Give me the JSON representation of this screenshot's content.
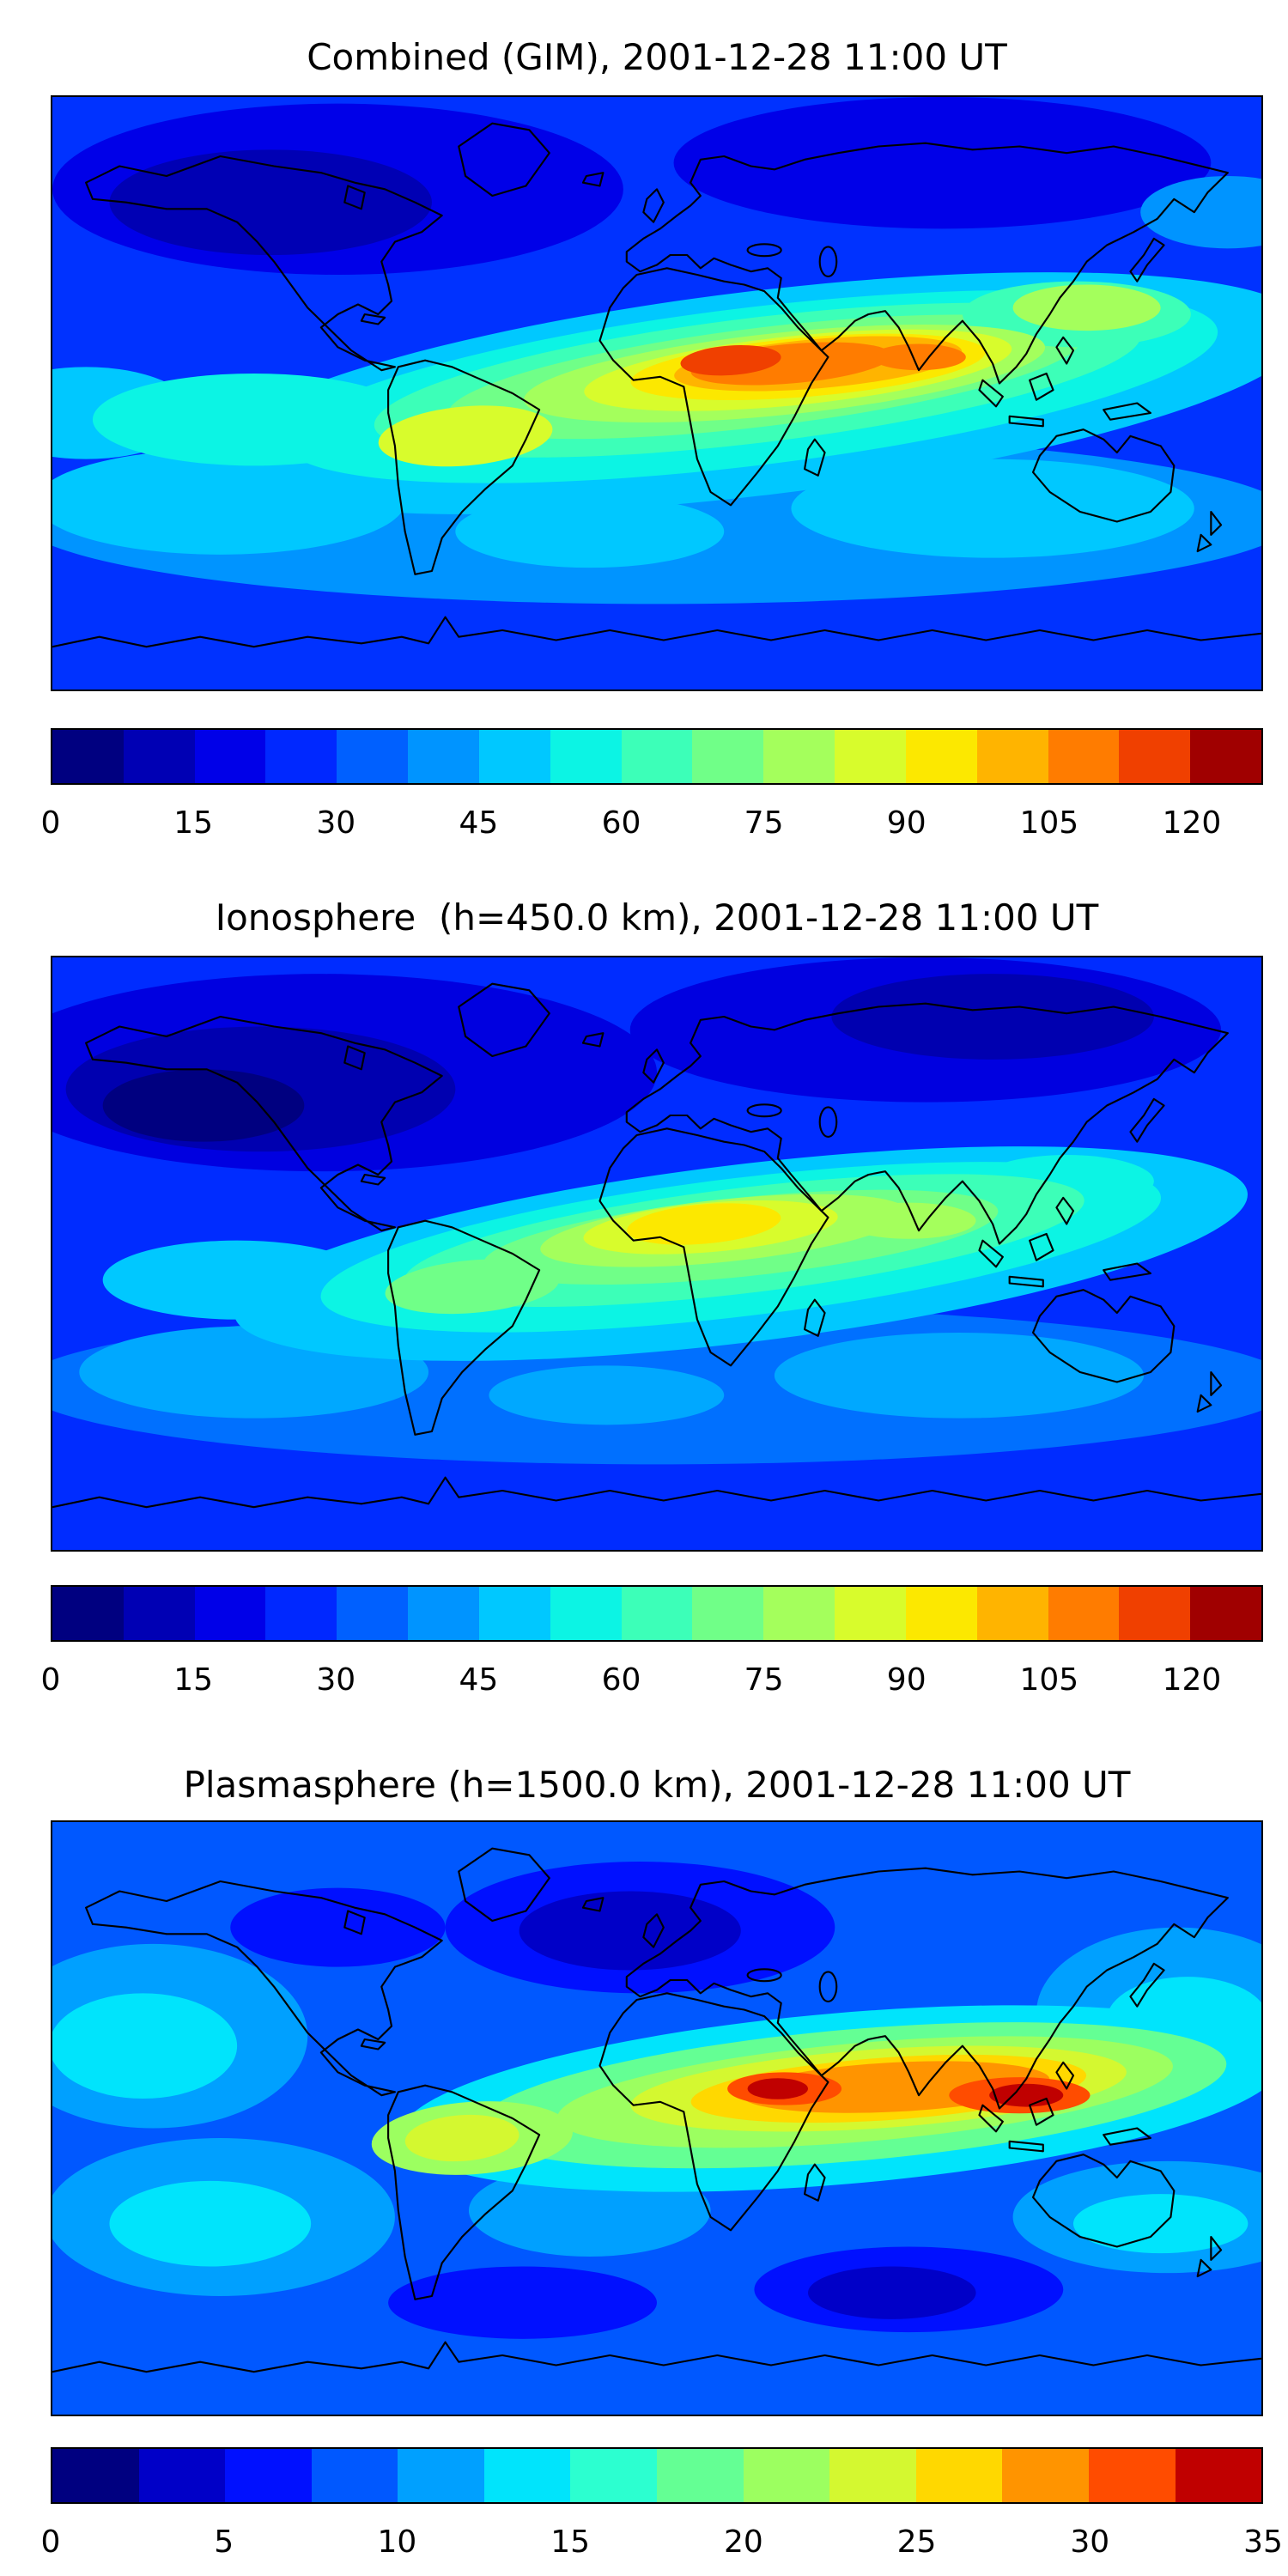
{
  "figure": {
    "background": "#ffffff",
    "coastline_color": "#000000",
    "panel_count": 3
  },
  "chart_data": [
    {
      "type": "heatmap",
      "subtype": "filled-contour-world-map",
      "title": "Combined (GIM), 2001-12-28 11:00 UT",
      "projection": "equirectangular",
      "lon_range": [
        -180,
        180
      ],
      "lat_range": [
        -90,
        90
      ],
      "colorbar": {
        "vmin": 0,
        "vmax": 127.5,
        "ticks": [
          0,
          15,
          30,
          45,
          60,
          75,
          90,
          105,
          120
        ],
        "colors": [
          "#000080",
          "#0000b4",
          "#0000e8",
          "#0028ff",
          "#0060ff",
          "#0094ff",
          "#00c8ff",
          "#0cf4e4",
          "#3cffb8",
          "#70ff88",
          "#a4ff5c",
          "#d8fc2c",
          "#fce800",
          "#ffb400",
          "#ff7c00",
          "#f04000",
          "#a00000"
        ]
      },
      "field": {
        "base_color": "#0032ff",
        "base_value": 20,
        "max_feature": {
          "name": "equatorial-anomaly-core",
          "lon": 22,
          "lat": 10,
          "value": 122
        },
        "blobs": [
          {
            "lon": -95,
            "lat": 62,
            "rx": 85,
            "ry": 26,
            "color": "#0000e8",
            "value": 8
          },
          {
            "lon": -115,
            "lat": 58,
            "rx": 48,
            "ry": 16,
            "color": "#0000b4",
            "value": 5
          },
          {
            "lon": 85,
            "lat": 70,
            "rx": 80,
            "ry": 20,
            "color": "#0000e8",
            "value": 8
          },
          {
            "lon": 0,
            "lat": -38,
            "rx": 190,
            "ry": 26,
            "color": "#0094ff",
            "value": 35
          },
          {
            "lon": -130,
            "lat": -33,
            "rx": 55,
            "ry": 16,
            "color": "#00c8ff",
            "value": 45
          },
          {
            "lon": 100,
            "lat": -35,
            "rx": 60,
            "ry": 15,
            "color": "#00c8ff",
            "value": 45
          },
          {
            "lon": -20,
            "lat": -42,
            "rx": 40,
            "ry": 11,
            "color": "#00c8ff",
            "value": 45
          },
          {
            "lon": 170,
            "lat": 55,
            "rx": 26,
            "ry": 11,
            "color": "#0094ff",
            "value": 35
          },
          {
            "lon": 30,
            "lat": 0,
            "rx": 165,
            "ry": 31,
            "rot": -7,
            "color": "#00c8ff",
            "value": 48
          },
          {
            "lon": 28,
            "lat": 2,
            "rx": 140,
            "ry": 24,
            "rot": -7,
            "color": "#0cf4e4",
            "value": 55
          },
          {
            "lon": -170,
            "lat": -6,
            "rx": 32,
            "ry": 14,
            "color": "#00c8ff",
            "value": 48
          },
          {
            "lon": -120,
            "lat": -8,
            "rx": 48,
            "ry": 14,
            "color": "#0cf4e4",
            "value": 55
          },
          {
            "lon": 30,
            "lat": 4,
            "rx": 115,
            "ry": 19,
            "rot": -7,
            "color": "#3cffb8",
            "value": 62
          },
          {
            "lon": 32,
            "lat": 5,
            "rx": 95,
            "ry": 15,
            "rot": -7,
            "color": "#70ff88",
            "value": 70
          },
          {
            "lon": 125,
            "lat": 24,
            "rx": 34,
            "ry": 10,
            "color": "#3cffb8",
            "value": 62
          },
          {
            "lon": 128,
            "lat": 26,
            "rx": 22,
            "ry": 7,
            "color": "#a4ff5c",
            "value": 78
          },
          {
            "lon": -57,
            "lat": -13,
            "rx": 26,
            "ry": 9,
            "rot": -5,
            "color": "#d8fc2c",
            "value": 85
          },
          {
            "lon": 38,
            "lat": 6,
            "rx": 78,
            "ry": 12.5,
            "rot": -6,
            "color": "#a4ff5c",
            "value": 78
          },
          {
            "lon": 42,
            "lat": 7,
            "rx": 64,
            "ry": 10.5,
            "rot": -6,
            "color": "#d8fc2c",
            "value": 85
          },
          {
            "lon": 45,
            "lat": 8,
            "rx": 53,
            "ry": 9,
            "rot": -5,
            "color": "#fce800",
            "value": 93
          },
          {
            "lon": 48,
            "lat": 9,
            "rx": 43,
            "ry": 7.5,
            "rot": -5,
            "color": "#ffb400",
            "value": 100
          },
          {
            "lon": 40,
            "lat": 9,
            "rx": 30,
            "ry": 6,
            "rot": -5,
            "color": "#ff7c00",
            "value": 108
          },
          {
            "lon": 78,
            "lat": 11,
            "rx": 14,
            "ry": 4,
            "color": "#ff7c00",
            "value": 108
          },
          {
            "lon": 22,
            "lat": 10,
            "rx": 15,
            "ry": 4.5,
            "rot": -4,
            "color": "#f04000",
            "value": 118
          }
        ]
      }
    },
    {
      "type": "heatmap",
      "subtype": "filled-contour-world-map",
      "title": "Ionosphere  (h=450.0 km), 2001-12-28 11:00 UT",
      "projection": "equirectangular",
      "lon_range": [
        -180,
        180
      ],
      "lat_range": [
        -90,
        90
      ],
      "colorbar": {
        "vmin": 0,
        "vmax": 127.5,
        "ticks": [
          0,
          15,
          30,
          45,
          60,
          75,
          90,
          105,
          120
        ],
        "colors": [
          "#000080",
          "#0000b4",
          "#0000e8",
          "#0028ff",
          "#0060ff",
          "#0094ff",
          "#00c8ff",
          "#0cf4e4",
          "#3cffb8",
          "#70ff88",
          "#a4ff5c",
          "#d8fc2c",
          "#fce800",
          "#ffb400",
          "#ff7c00",
          "#f04000",
          "#a00000"
        ]
      },
      "field": {
        "base_color": "#002cff",
        "base_value": 15,
        "max_feature": {
          "name": "equatorial-anomaly-core",
          "lon": 14,
          "lat": 9,
          "value": 95
        },
        "blobs": [
          {
            "lon": -100,
            "lat": 55,
            "rx": 100,
            "ry": 30,
            "color": "#0000e0",
            "value": 8
          },
          {
            "lon": -118,
            "lat": 50,
            "rx": 58,
            "ry": 19,
            "color": "#0000b0",
            "value": 5
          },
          {
            "lon": -135,
            "lat": 45,
            "rx": 30,
            "ry": 11,
            "color": "#000080",
            "value": 2
          },
          {
            "lon": 80,
            "lat": 68,
            "rx": 88,
            "ry": 22,
            "color": "#0000e0",
            "value": 8
          },
          {
            "lon": 100,
            "lat": 72,
            "rx": 48,
            "ry": 13,
            "color": "#0000b0",
            "value": 5
          },
          {
            "lon": 0,
            "lat": -40,
            "rx": 190,
            "ry": 24,
            "color": "#0070ff",
            "value": 28
          },
          {
            "lon": -120,
            "lat": -36,
            "rx": 52,
            "ry": 14,
            "color": "#00a8ff",
            "value": 38
          },
          {
            "lon": 90,
            "lat": -37,
            "rx": 55,
            "ry": 13,
            "color": "#00a8ff",
            "value": 38
          },
          {
            "lon": -15,
            "lat": -43,
            "rx": 35,
            "ry": 9,
            "color": "#00a8ff",
            "value": 38
          },
          {
            "lon": 25,
            "lat": 0,
            "rx": 152,
            "ry": 27,
            "rot": -7,
            "color": "#00c8ff",
            "value": 45
          },
          {
            "lon": -125,
            "lat": -8,
            "rx": 40,
            "ry": 12,
            "color": "#00c8ff",
            "value": 45
          },
          {
            "lon": 25,
            "lat": 2,
            "rx": 126,
            "ry": 21,
            "rot": -7,
            "color": "#0cf4e4",
            "value": 55
          },
          {
            "lon": 122,
            "lat": 22,
            "rx": 26,
            "ry": 8,
            "color": "#0cf4e4",
            "value": 55
          },
          {
            "lon": 26,
            "lat": 4,
            "rx": 102,
            "ry": 16,
            "rot": -7,
            "color": "#3cffb8",
            "value": 62
          },
          {
            "lon": -55,
            "lat": -10,
            "rx": 26,
            "ry": 8,
            "rot": -5,
            "color": "#70ff88",
            "value": 70
          },
          {
            "lon": 25,
            "lat": 5,
            "rx": 77,
            "ry": 12,
            "rot": -6,
            "color": "#70ff88",
            "value": 70
          },
          {
            "lon": 75,
            "lat": 10,
            "rx": 20,
            "ry": 5.5,
            "color": "#a4ff5c",
            "value": 78
          },
          {
            "lon": 20,
            "lat": 7,
            "rx": 55,
            "ry": 9.5,
            "rot": -6,
            "color": "#a4ff5c",
            "value": 78
          },
          {
            "lon": 16,
            "lat": 8,
            "rx": 38,
            "ry": 7.5,
            "rot": -5,
            "color": "#d8fc2c",
            "value": 85
          },
          {
            "lon": 14,
            "lat": 9,
            "rx": 23,
            "ry": 6,
            "rot": -5,
            "color": "#fce800",
            "value": 92
          }
        ]
      }
    },
    {
      "type": "heatmap",
      "subtype": "filled-contour-world-map",
      "title": "Plasmasphere (h=1500.0 km), 2001-12-28 11:00 UT",
      "projection": "equirectangular",
      "lon_range": [
        -180,
        180
      ],
      "lat_range": [
        -90,
        90
      ],
      "colorbar": {
        "vmin": 0,
        "vmax": 35,
        "ticks": [
          0,
          5,
          10,
          15,
          20,
          25,
          30,
          35
        ],
        "colors": [
          "#000080",
          "#0000c8",
          "#0010ff",
          "#0058ff",
          "#00a0ff",
          "#00e4fc",
          "#2cffd0",
          "#64ff94",
          "#9cff60",
          "#d4f830",
          "#ffd800",
          "#ff9400",
          "#ff4c00",
          "#c00000"
        ]
      },
      "field": {
        "base_color": "#0058ff",
        "base_value": 8,
        "max_feature": {
          "name": "plasmaspheric-crest-cores",
          "lon": 36,
          "lat": 9,
          "value": 34
        },
        "blobs": [
          {
            "lon": -150,
            "lat": 25,
            "rx": 46,
            "ry": 28,
            "color": "#00a0ff",
            "value": 10
          },
          {
            "lon": -153,
            "lat": 22,
            "rx": 28,
            "ry": 16,
            "color": "#00e4fc",
            "value": 13
          },
          {
            "lon": -130,
            "lat": -30,
            "rx": 52,
            "ry": 24,
            "color": "#00a0ff",
            "value": 10
          },
          {
            "lon": -133,
            "lat": -32,
            "rx": 30,
            "ry": 13,
            "color": "#00e4fc",
            "value": 13
          },
          {
            "lon": 155,
            "lat": 32,
            "rx": 42,
            "ry": 26,
            "color": "#00a0ff",
            "value": 10
          },
          {
            "lon": 158,
            "lat": 30,
            "rx": 24,
            "ry": 13,
            "color": "#00e4fc",
            "value": 13
          },
          {
            "lon": 152,
            "lat": -30,
            "rx": 46,
            "ry": 17,
            "color": "#00a0ff",
            "value": 10
          },
          {
            "lon": 150,
            "lat": -32,
            "rx": 26,
            "ry": 9,
            "color": "#00e4fc",
            "value": 13
          },
          {
            "lon": -20,
            "lat": -28,
            "rx": 36,
            "ry": 14,
            "color": "#00a0ff",
            "value": 10
          },
          {
            "lon": -95,
            "lat": 58,
            "rx": 32,
            "ry": 12,
            "color": "#0010ff",
            "value": 5
          },
          {
            "lon": -5,
            "lat": 58,
            "rx": 58,
            "ry": 20,
            "color": "#0010ff",
            "value": 5
          },
          {
            "lon": -8,
            "lat": 57,
            "rx": 33,
            "ry": 12,
            "color": "#0000c8",
            "value": 3
          },
          {
            "lon": 75,
            "lat": -52,
            "rx": 46,
            "ry": 13,
            "color": "#0010ff",
            "value": 5
          },
          {
            "lon": 70,
            "lat": -53,
            "rx": 25,
            "ry": 8,
            "color": "#0000c8",
            "value": 3
          },
          {
            "lon": -40,
            "lat": -56,
            "rx": 40,
            "ry": 11,
            "color": "#0010ff",
            "value": 5
          },
          {
            "lon": 55,
            "lat": 6,
            "rx": 132,
            "ry": 26,
            "rot": -5,
            "color": "#00e4fc",
            "value": 14
          },
          {
            "lon": 58,
            "lat": 7,
            "rx": 112,
            "ry": 20,
            "rot": -5,
            "color": "#64ff94",
            "value": 18
          },
          {
            "lon": -55,
            "lat": -6,
            "rx": 30,
            "ry": 11,
            "rot": -4,
            "color": "#9cff60",
            "value": 21
          },
          {
            "lon": -58,
            "lat": -6,
            "rx": 17,
            "ry": 7,
            "rot": -4,
            "color": "#d4f830",
            "value": 23
          },
          {
            "lon": 62,
            "lat": 8,
            "rx": 92,
            "ry": 15,
            "rot": -5,
            "color": "#9cff60",
            "value": 21
          },
          {
            "lon": 66,
            "lat": 9,
            "rx": 74,
            "ry": 12,
            "rot": -4,
            "color": "#d4f830",
            "value": 23
          },
          {
            "lon": 69,
            "lat": 9,
            "rx": 59,
            "ry": 9.5,
            "rot": -4,
            "color": "#ffd800",
            "value": 26
          },
          {
            "lon": 71,
            "lat": 9.5,
            "rx": 46,
            "ry": 7.5,
            "rot": -3,
            "color": "#ff9400",
            "value": 29
          },
          {
            "lon": 38,
            "lat": 9,
            "rx": 17,
            "ry": 5,
            "color": "#ff4c00",
            "value": 32
          },
          {
            "lon": 36,
            "lat": 9,
            "rx": 9,
            "ry": 3.2,
            "color": "#c00000",
            "value": 34
          },
          {
            "lon": 108,
            "lat": 7,
            "rx": 21,
            "ry": 5.5,
            "color": "#ff4c00",
            "value": 32
          },
          {
            "lon": 110,
            "lat": 7,
            "rx": 11,
            "ry": 3.5,
            "color": "#c00000",
            "value": 34
          }
        ]
      }
    }
  ]
}
